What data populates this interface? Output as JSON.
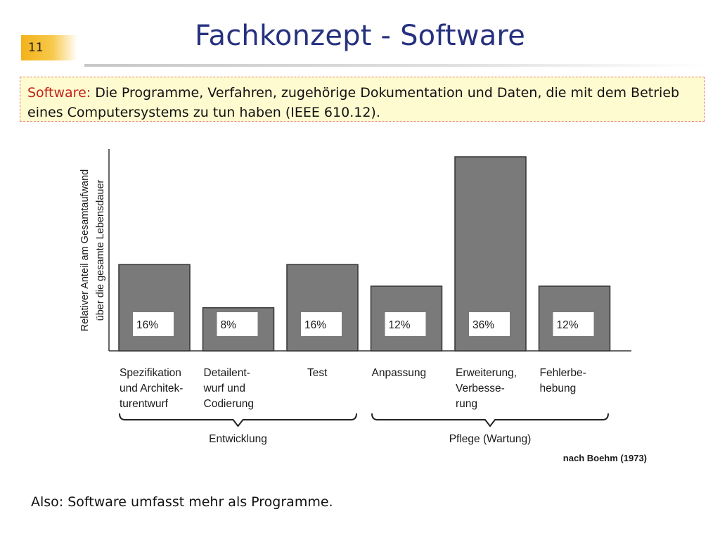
{
  "slide": {
    "number": "11",
    "title": "Fachkonzept - Software"
  },
  "definition": {
    "term": "Software:",
    "text": "Die Programme, Verfahren, zugehörige Dokumentation und Daten, die mit dem Betrieb eines Computersystems zu tun haben (IEEE 610.12)."
  },
  "chart_data": {
    "type": "bar",
    "ylabel_lines": [
      "Relativer Anteil am Gesamtaufwand",
      "über die gesamte Lebensdauer"
    ],
    "categories": [
      [
        "Spezifikation",
        "und Architek-",
        "turentwurf"
      ],
      [
        "Detailent-",
        "wurf und",
        "Codierung"
      ],
      [
        "Test"
      ],
      [
        "Anpassung"
      ],
      [
        "Erweiterung,",
        "Verbesse-",
        "rung"
      ],
      [
        "Fehlerbe-",
        "hebung"
      ]
    ],
    "values": [
      16,
      8,
      16,
      12,
      36,
      12
    ],
    "value_labels": [
      "16%",
      "8%",
      "16%",
      "12%",
      "36%",
      "12%"
    ],
    "groups": [
      {
        "label": "Entwicklung",
        "from": 0,
        "to": 2
      },
      {
        "label": "Pflege (Wartung)",
        "from": 3,
        "to": 5
      }
    ],
    "source": "nach Boehm (1973)",
    "bar_color": "#7a7a7a",
    "grid": false
  },
  "conclusion": "Also: Software umfasst mehr als Programme."
}
